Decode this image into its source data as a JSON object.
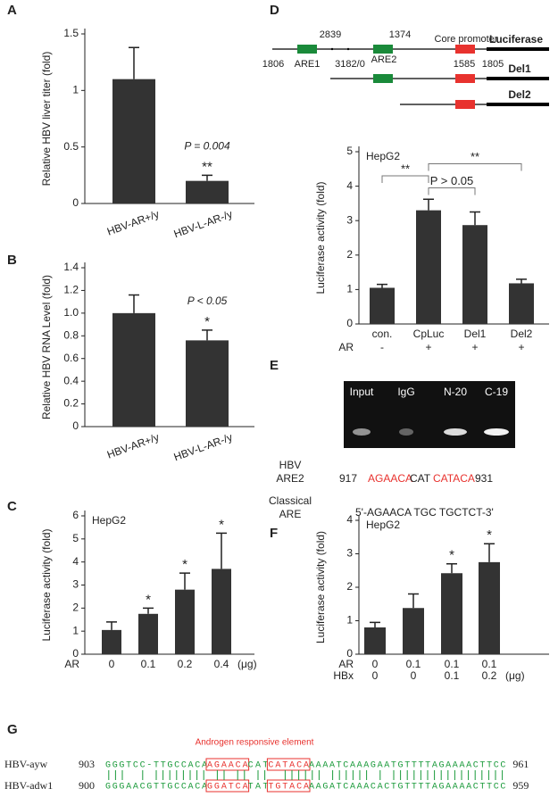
{
  "chart_data": [
    {
      "type": "bar",
      "panel": "A",
      "y_label": "Relative HBV liver titer (fold)",
      "categories": [
        "HBV-AR+/y",
        "HBV-L-AR-/y"
      ],
      "values": [
        1.1,
        0.2
      ],
      "errors": [
        0.28,
        0.05
      ],
      "significance": [
        null,
        "**"
      ],
      "note": "P = 0.004",
      "color": "#333333",
      "ylim": [
        0,
        1.5
      ],
      "yticks": [
        0,
        0.5,
        1,
        1.5
      ]
    },
    {
      "type": "bar",
      "panel": "B",
      "y_label": "Relative HBV RNA Level (fold)",
      "categories": [
        "HBV-AR+/y",
        "HBV-L-AR-/y"
      ],
      "values": [
        1.0,
        0.76
      ],
      "errors": [
        0.16,
        0.09
      ],
      "significance": [
        null,
        "*"
      ],
      "note": "P < 0.05",
      "color": "#333333",
      "ylim": [
        0,
        1.4
      ],
      "yticks": [
        0,
        0.2,
        0.4,
        0.6,
        0.8,
        {
          "value": 1,
          "label": "1.0"
        },
        1.2,
        1.4
      ]
    },
    {
      "type": "bar",
      "panel": "C",
      "title": "HepG2",
      "y_label": "Luciferase activity (fold)",
      "rows": [
        {
          "name": "AR",
          "labels": [
            "0",
            "0.1",
            "0.2",
            "0.4"
          ]
        }
      ],
      "unit": "(μg)",
      "values": [
        1.05,
        1.75,
        2.8,
        3.7
      ],
      "errors": [
        0.35,
        0.25,
        0.72,
        1.55
      ],
      "significance": [
        null,
        "*",
        "*",
        "*"
      ],
      "color": "#333333",
      "ylim": [
        0,
        6
      ],
      "yticks": [
        0,
        1,
        2,
        3,
        4,
        5,
        6
      ]
    },
    {
      "type": "bar",
      "title": "HepG2",
      "y_label": "Luciferase activity (fold)",
      "categories": [
        "con.",
        "CpLuc",
        "Del1",
        "Del2"
      ],
      "rows": [
        {
          "name": "AR",
          "labels": [
            "-",
            "+",
            "+",
            "+"
          ]
        }
      ],
      "values": [
        1.05,
        3.3,
        2.87,
        1.18
      ],
      "errors": [
        0.1,
        0.32,
        0.38,
        0.12
      ],
      "comparisons": [
        "**",
        "**",
        "P > 0.05"
      ],
      "color": "#333333",
      "ylim": [
        0,
        5
      ],
      "yticks": [
        0,
        1,
        2,
        3,
        4,
        5
      ]
    },
    {
      "type": "bar",
      "panel": "F",
      "title": "HepG2",
      "y_label": "Luciferase activity (fold)",
      "rows": [
        {
          "name": "AR",
          "labels": [
            "0",
            "0.1",
            "0.1",
            "0.1"
          ]
        },
        {
          "name": "HBx",
          "labels": [
            "0",
            "0",
            "0.1",
            "0.2"
          ]
        }
      ],
      "unit": "(μg)",
      "values": [
        0.8,
        1.38,
        2.42,
        2.75
      ],
      "errors": [
        0.15,
        0.42,
        0.28,
        0.55
      ],
      "significance": [
        null,
        null,
        "*",
        "*"
      ],
      "color": "#333333",
      "ylim": [
        0,
        4
      ],
      "yticks": [
        0,
        1,
        2,
        3,
        4
      ]
    }
  ],
  "diagram": {
    "panel": "D",
    "numbers": [
      "1806",
      "2839",
      "3182/0",
      "1374",
      "1585",
      "1805"
    ],
    "elements": [
      "ARE1",
      "ARE2",
      "Core promoter"
    ],
    "constructs": [
      "Luciferase",
      "Del1",
      "Del2"
    ]
  },
  "gel": {
    "panel": "E",
    "lanes": [
      "Input",
      "IgG",
      "N-20",
      "C-19"
    ],
    "hbv_label": [
      "HBV",
      "ARE2"
    ],
    "hbv_sequence": [
      "917",
      "AGAACA",
      "CAT",
      "CATACA",
      "931"
    ],
    "classical_label": [
      "Classical",
      "ARE"
    ],
    "classical_sequence": "5'-AGAACA TGC TGCTCT-3'"
  },
  "alignment": {
    "panel": "G",
    "title": "Androgen responsive element",
    "rows": [
      {
        "name": "HBV-ayw",
        "start": "903",
        "segments": [
          "GGGTCC-TTGCCACA",
          "AGAACA",
          "CAT",
          "CATACA",
          "AAAATCAAAGAATGTTTTAGAAAACTTCC"
        ],
        "end": "961"
      },
      {
        "name": "HBV-adw1",
        "start": "900",
        "segments": [
          "GGGAACGTTGCCACA",
          "GGATCA",
          "TAT",
          "TGTACA",
          "AAGATCAAACACTGTTTTAGAAAACTTCC"
        ],
        "end": "959"
      }
    ]
  }
}
